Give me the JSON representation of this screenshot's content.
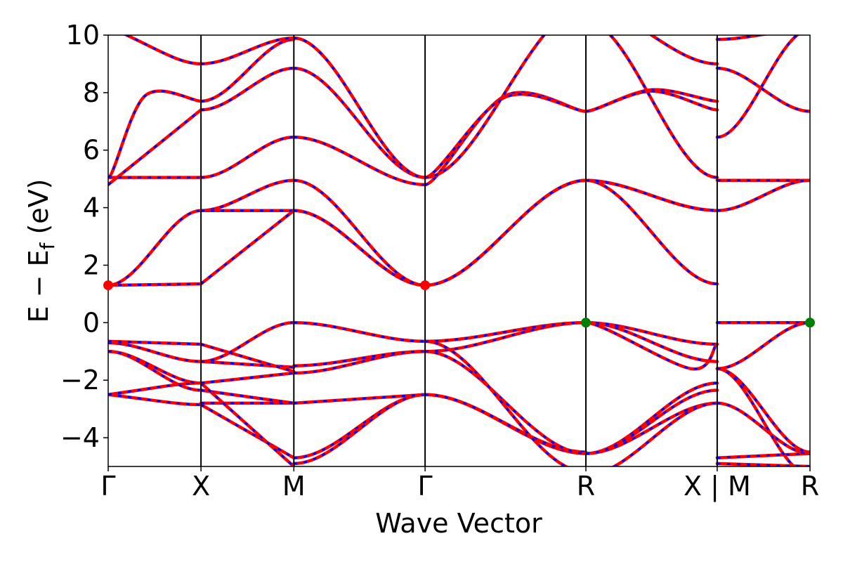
{
  "chart_data": {
    "type": "line",
    "xlabel": "Wave Vector",
    "ylabel": "E − E",
    "ylabel_sub": "f",
    "ylabel_unit": " (eV)",
    "ylim": [
      -5,
      10
    ],
    "yticks": [
      -4,
      -2,
      0,
      2,
      4,
      6,
      8,
      10
    ],
    "ytick_labels": [
      "−4",
      "−2",
      "0",
      "2",
      "4",
      "6",
      "8",
      "10"
    ],
    "kpath_labels": [
      "Γ",
      "X",
      "M",
      "Γ",
      "R",
      "X | M",
      "R"
    ],
    "segment_lengths": [
      1,
      1,
      1.4142,
      1.7321,
      1.4142,
      1
    ],
    "band_line_colors": {
      "solid": "#ff0000",
      "dashed": "#0000ff"
    },
    "extremum_markers": [
      {
        "k_label": "Γ",
        "energy": 1.3,
        "color": "#ff0000"
      },
      {
        "k_label": "Γ",
        "energy": 1.3,
        "color": "#ff0000"
      },
      {
        "k_label": "R",
        "energy": 0.0,
        "color": "#008000"
      },
      {
        "k_label": "R",
        "energy": 0.0,
        "color": "#008000"
      }
    ],
    "segments": [
      {
        "from": "Γ",
        "to": "X",
        "bands": [
          [
            -5.3,
            -6.0
          ],
          [
            -2.5,
            -2.85,
            "q"
          ],
          [
            -2.5,
            -2.1,
            "q"
          ],
          [
            -1.0,
            -2.35,
            "s"
          ],
          [
            -1.0,
            -2.1,
            "s"
          ],
          [
            -0.7,
            -1.35,
            "s"
          ],
          [
            -0.65,
            -0.75
          ],
          [
            1.3,
            1.35
          ],
          [
            1.3,
            3.9,
            "s"
          ],
          [
            4.8,
            7.4
          ],
          [
            5.05,
            5.05
          ],
          [
            5.05,
            7.7,
            [
              [
                0.4,
                7.9
              ]
            ]
          ],
          [
            10.3,
            9.0,
            "q"
          ]
        ]
      },
      {
        "from": "X",
        "to": "M",
        "bands": [
          [
            -2.85,
            -4.7
          ],
          [
            -2.8,
            -2.8
          ],
          [
            -2.35,
            -2.8
          ],
          [
            -2.1,
            -5.0
          ],
          [
            -2.1,
            -1.75
          ],
          [
            -1.35,
            -1.55
          ],
          [
            -0.75,
            -1.7
          ],
          [
            -1.35,
            0.0,
            "s"
          ],
          [
            1.35,
            3.9
          ],
          [
            3.9,
            4.95,
            "s"
          ],
          [
            3.9,
            3.9
          ],
          [
            5.05,
            6.45,
            "s"
          ],
          [
            7.4,
            8.85,
            "s"
          ],
          [
            7.7,
            9.85,
            "s"
          ],
          [
            9.0,
            9.9,
            "s"
          ]
        ]
      },
      {
        "from": "M",
        "to": "Γ",
        "bands": [
          [
            -4.7,
            -2.5,
            "s"
          ],
          [
            -4.9,
            -2.5,
            "s"
          ],
          [
            -2.8,
            -2.5
          ],
          [
            -1.75,
            -1.0,
            "s"
          ],
          [
            -1.5,
            -1.0,
            "s"
          ],
          [
            0.0,
            -0.65,
            "s"
          ],
          [
            3.9,
            1.3,
            "s"
          ],
          [
            3.9,
            1.3,
            "s"
          ],
          [
            4.95,
            1.3,
            "s"
          ],
          [
            6.45,
            4.8,
            "s"
          ],
          [
            8.85,
            5.05,
            "s"
          ],
          [
            9.9,
            5.05,
            "s"
          ]
        ]
      },
      {
        "from": "Γ",
        "to": "R",
        "bands": [
          [
            -2.5,
            -4.55,
            "s"
          ],
          [
            -2.5,
            -4.5,
            "s"
          ],
          [
            -1.0,
            -4.55,
            "s"
          ],
          [
            -1.0,
            0.0,
            "s"
          ],
          [
            -0.65,
            0.0,
            "s"
          ],
          [
            -0.65,
            -5.2,
            "s"
          ],
          [
            1.3,
            4.95,
            "s"
          ],
          [
            1.3,
            4.95,
            "s"
          ],
          [
            1.3,
            4.95,
            "s"
          ],
          [
            4.8,
            7.35,
            [
              [
                0.5,
                7.9
              ]
            ]
          ],
          [
            5.05,
            7.35,
            [
              [
                0.5,
                7.85
              ]
            ]
          ],
          [
            5.05,
            11.0,
            "s"
          ]
        ]
      },
      {
        "from": "R",
        "to": "X",
        "bands": [
          [
            -4.55,
            -2.8,
            "s"
          ],
          [
            -4.55,
            -2.1,
            "s"
          ],
          [
            -4.55,
            -2.35,
            "s"
          ],
          [
            -5.3,
            -2.8,
            "s"
          ],
          [
            0.0,
            -1.35,
            "s"
          ],
          [
            0.0,
            -0.75,
            "s"
          ],
          [
            0.0,
            -0.75,
            [
              [
                0.8,
                -1.6
              ]
            ]
          ],
          [
            4.95,
            1.35,
            "s"
          ],
          [
            4.95,
            3.9,
            "s"
          ],
          [
            4.95,
            3.9,
            "s"
          ],
          [
            7.35,
            7.7,
            [
              [
                0.5,
                8.1
              ]
            ]
          ],
          [
            7.35,
            7.4,
            [
              [
                0.5,
                8.05
              ]
            ]
          ],
          [
            10.5,
            5.05,
            "s"
          ],
          [
            11.0,
            9.0,
            "s"
          ]
        ]
      },
      {
        "from": "M",
        "to": "R",
        "bands": [
          [
            -4.7,
            -4.55
          ],
          [
            -4.9,
            -5.0
          ],
          [
            -2.8,
            -4.55,
            "s"
          ],
          [
            -1.6,
            -4.5,
            "s"
          ],
          [
            -1.6,
            -5.3,
            "s"
          ],
          [
            0.0,
            0.0
          ],
          [
            -1.6,
            0.0,
            "s"
          ],
          [
            4.95,
            4.95
          ],
          [
            3.9,
            4.95,
            "s"
          ],
          [
            6.45,
            10.2,
            "s"
          ],
          [
            8.85,
            7.35,
            "s"
          ],
          [
            9.85,
            10.2,
            "s"
          ]
        ]
      }
    ]
  }
}
